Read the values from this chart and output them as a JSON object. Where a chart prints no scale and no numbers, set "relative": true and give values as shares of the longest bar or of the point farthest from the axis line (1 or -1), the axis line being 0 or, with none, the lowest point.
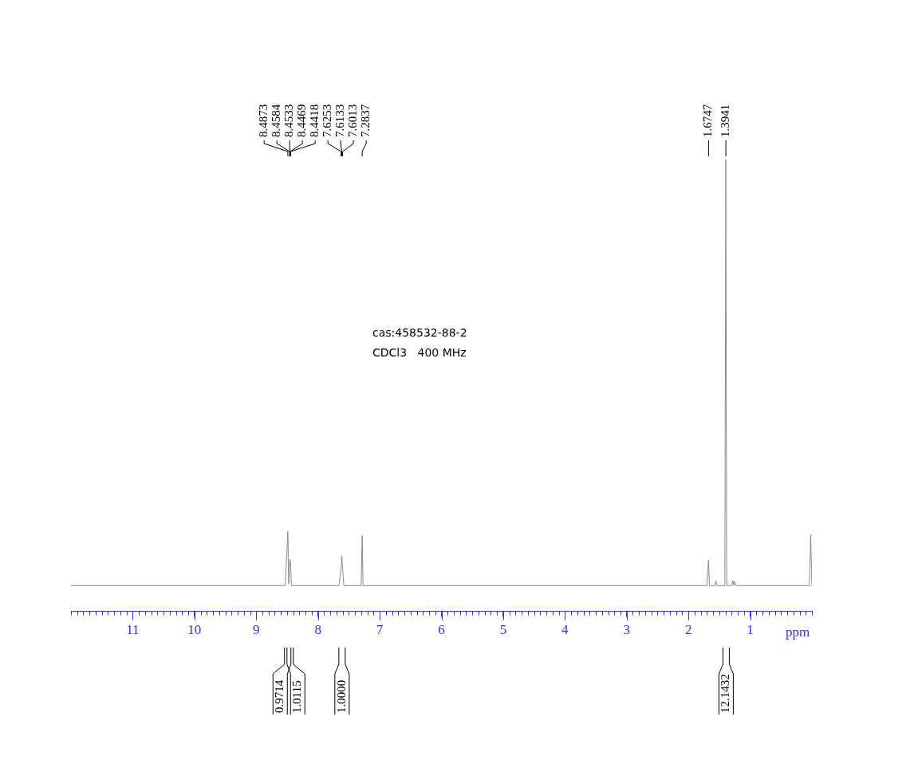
{
  "chart_data": {
    "type": "line",
    "relative": true,
    "color": "#8a8a8a",
    "legend": false,
    "grid": false,
    "tick_labels": "x",
    "marker": "none",
    "xlabel": "ppm",
    "xlim": [
      12,
      0
    ],
    "xticks": [
      1,
      2,
      3,
      4,
      5,
      6,
      7,
      8,
      9,
      10,
      11
    ],
    "x": [
      12,
      8.53,
      8.4873,
      8.475,
      8.4584,
      8.4533,
      8.4469,
      8.4418,
      8.43,
      7.66,
      7.6253,
      7.6133,
      7.6013,
      7.58,
      7.3,
      7.2837,
      7.27,
      1.7,
      1.6747,
      1.66,
      1.57,
      1.555,
      1.54,
      1.41,
      1.3941,
      1.38,
      1.3,
      1.28,
      1.265,
      1.25,
      1.23,
      0.04,
      0.02,
      0
    ],
    "values": [
      0.057,
      0.057,
      0.177,
      0.061,
      0.114,
      0.115,
      0.109,
      0.099,
      0.057,
      0.057,
      0.095,
      0.123,
      0.095,
      0.057,
      0.057,
      0.168,
      0.057,
      0.057,
      0.113,
      0.057,
      0.057,
      0.068,
      0.057,
      0.057,
      1,
      0.057,
      0.057,
      0.068,
      0.057,
      0.066,
      0.057,
      0.057,
      0.17,
      0.057
    ],
    "annotations": [
      "cas:458532-88-2",
      "CDCl3   400 MHz",
      "8.4873",
      "8.4584",
      "8.4533",
      "8.4469",
      "8.4418",
      "7.6253",
      "7.6133",
      "7.6013",
      "7.2837",
      "1.6747",
      "1.3941",
      "0.9714",
      "1.0115",
      "1.0000",
      "12.1432"
    ]
  }
}
